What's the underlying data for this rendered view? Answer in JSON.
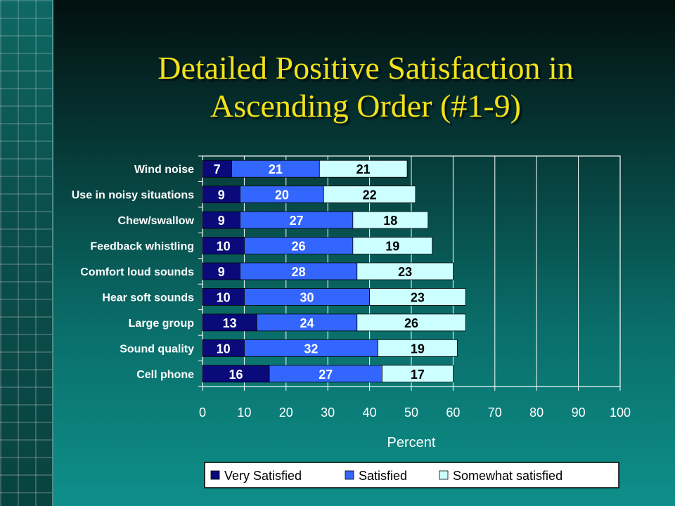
{
  "slide": {
    "title_line1": "Detailed Positive Satisfaction in",
    "title_line2": "Ascending Order (#1-9)"
  },
  "colors": {
    "very_satisfied": "#0a0a7a",
    "satisfied": "#3366ff",
    "somewhat_satisfied": "#ccffff",
    "title": "#f2e21a"
  },
  "chart_data": {
    "type": "bar",
    "orientation": "horizontal",
    "stacked": true,
    "categories": [
      "Wind noise",
      "Use in noisy situations",
      "Chew/swallow",
      "Feedback whistling",
      "Comfort loud sounds",
      "Hear soft sounds",
      "Large group",
      "Sound quality",
      "Cell phone"
    ],
    "series": [
      {
        "name": "Very Satisfied",
        "color": "#0a0a7a",
        "values": [
          7,
          9,
          9,
          10,
          9,
          10,
          13,
          10,
          16
        ]
      },
      {
        "name": "Satisfied",
        "color": "#3366ff",
        "values": [
          21,
          20,
          27,
          26,
          28,
          30,
          24,
          32,
          27
        ]
      },
      {
        "name": "Somewhat satisfied",
        "color": "#ccffff",
        "values": [
          21,
          22,
          18,
          19,
          23,
          23,
          26,
          19,
          17
        ]
      }
    ],
    "xlabel": "Percent",
    "ylabel": "",
    "xlim": [
      0,
      100
    ],
    "xticks": [
      "0",
      "10",
      "20",
      "30",
      "40",
      "50",
      "60",
      "70",
      "80",
      "90",
      "100"
    ],
    "grid": true,
    "legend": "bottom"
  }
}
